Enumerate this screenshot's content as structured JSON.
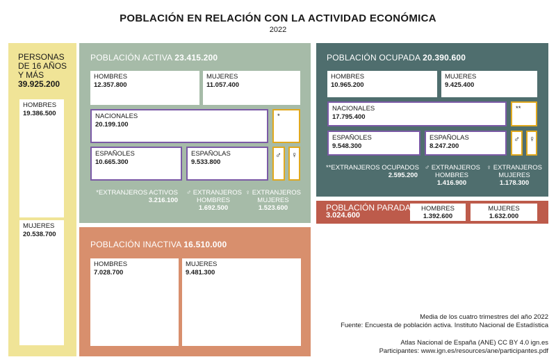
{
  "header": {
    "title": "POBLACIÓN EN RELACIÓN CON LA ACTIVIDAD ECONÓMICA",
    "year": "2022"
  },
  "personas": {
    "label_lines": [
      "PERSONAS",
      "DE 16 AÑOS",
      "Y MÁS"
    ],
    "total": "39.925.200",
    "hombres_label": "HOMBRES",
    "hombres_value": "19.386.500",
    "mujeres_label": "MUJERES",
    "mujeres_value": "20.538.700"
  },
  "activa": {
    "title": "POBLACIÓN ACTIVA",
    "total": "23.415.200",
    "hombres_label": "HOMBRES",
    "hombres_value": "12.357.800",
    "mujeres_label": "MUJERES",
    "mujeres_value": "11.057.400",
    "nacionales_label": "NACIONALES",
    "nacionales_value": "20.199.100",
    "extranjeros_mark": "*",
    "espanoles_label": "ESPAÑOLES",
    "espanoles_value": "10.665.300",
    "espanolas_label": "ESPAÑOLAS",
    "espanolas_value": "9.533.800",
    "male_symbol": "♂",
    "female_symbol": "♀",
    "ext_activos_label": "*EXTRANJEROS ACTIVOS",
    "ext_activos_value": "3.216.100",
    "ext_hombres_label1": "♂ EXTRANJEROS",
    "ext_hombres_label2": "HOMBRES",
    "ext_hombres_value": "1.692.500",
    "ext_mujeres_label1": "♀ EXTRANJEROS",
    "ext_mujeres_label2": "MUJERES",
    "ext_mujeres_value": "1.523.600"
  },
  "ocupada": {
    "title": "POBLACIÓN OCUPADA",
    "total": "20.390.600",
    "hombres_label": "HOMBRES",
    "hombres_value": "10.965.200",
    "mujeres_label": "MUJERES",
    "mujeres_value": "9.425.400",
    "nacionales_label": "NACIONALES",
    "nacionales_value": "17.795.400",
    "extranjeros_mark": "**",
    "espanoles_label": "ESPAÑOLES",
    "espanoles_value": "9.548.300",
    "espanolas_label": "ESPAÑOLAS",
    "espanolas_value": "8.247.200",
    "male_symbol": "♂",
    "female_symbol": "♀",
    "ext_ocupados_label": "**EXTRANJEROS OCUPADOS",
    "ext_ocupados_value": "2.595.200",
    "ext_hombres_label1": "♂ EXTRANJEROS",
    "ext_hombres_label2": "HOMBRES",
    "ext_hombres_value": "1.416.900",
    "ext_mujeres_label1": "♀ EXTRANJEROS",
    "ext_mujeres_label2": "MUJERES",
    "ext_mujeres_value": "1.178.300"
  },
  "parada": {
    "title": "POBLACIÓN PARADA",
    "total": "3.024.600",
    "hombres_label": "HOMBRES",
    "hombres_value": "1.392.600",
    "mujeres_label": "MUJERES",
    "mujeres_value": "1.632.000"
  },
  "inactiva": {
    "title": "POBLACIÓN INACTIVA",
    "total": "16.510.000",
    "hombres_label": "HOMBRES",
    "hombres_value": "7.028.700",
    "mujeres_label": "MUJERES",
    "mujeres_value": "9.481.300"
  },
  "footer": {
    "line1": "Media de los cuatro trimestres del año 2022",
    "line2": "Fuente: Encuesta de población activa. Instituto Nacional de Estadística",
    "line3": "Atlas Nacional de España (ANE) CC BY 4.0 ign.es",
    "line4": "Participantes: www.ign.es/resources/ane/participantes.pdf"
  },
  "colors": {
    "personas": "#f0e497",
    "activa": "#a6bba8",
    "ocupada": "#4f6e6e",
    "parada": "#bd5b4b",
    "inactiva": "#d88f6d",
    "nacionales_border": "#7b5aa6",
    "extranjeros_border": "#e0a81e"
  }
}
